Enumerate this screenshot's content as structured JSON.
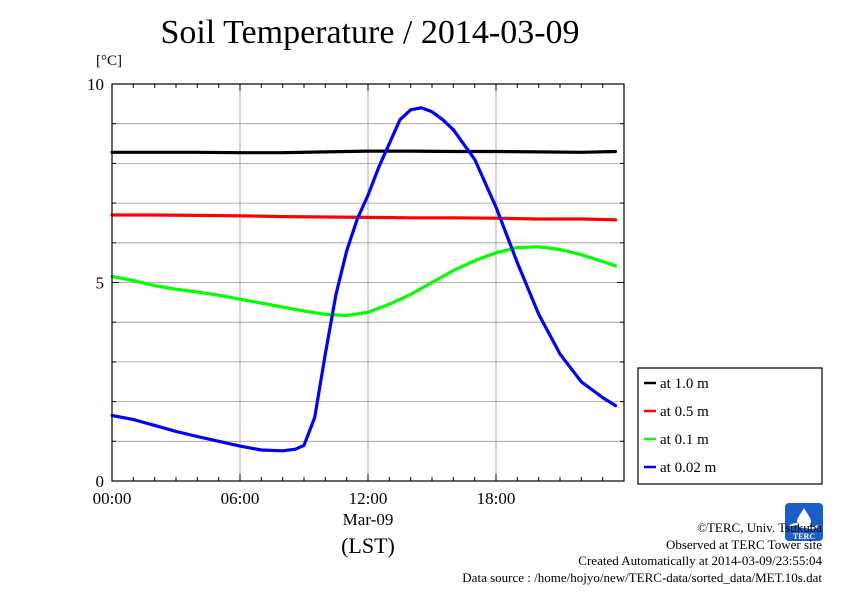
{
  "chart_data": {
    "type": "line",
    "title": "Soil Temperature / 2014-03-09",
    "ylabel": "[°C]",
    "xlabel": "(LST)",
    "date_label": "Mar-09",
    "ylim": [
      0,
      10
    ],
    "yticks": [
      "0",
      "5",
      "10"
    ],
    "xlim": [
      0,
      24
    ],
    "xticks": [
      "00:00",
      "06:00",
      "12:00",
      "18:00"
    ],
    "grid": true,
    "legend_position": "right",
    "series": [
      {
        "name": "at 1.0 m",
        "color": "#000000",
        "x": [
          0,
          2,
          4,
          6,
          8,
          10,
          12,
          14,
          16,
          18,
          20,
          22,
          23.6
        ],
        "y": [
          8.28,
          8.28,
          8.28,
          8.27,
          8.27,
          8.29,
          8.31,
          8.31,
          8.3,
          8.3,
          8.29,
          8.28,
          8.3
        ]
      },
      {
        "name": "at 0.5 m",
        "color": "#ff0000",
        "x": [
          0,
          2,
          4,
          6,
          8,
          10,
          12,
          14,
          16,
          18,
          20,
          22,
          23.6
        ],
        "y": [
          6.7,
          6.7,
          6.69,
          6.68,
          6.66,
          6.65,
          6.64,
          6.63,
          6.63,
          6.62,
          6.6,
          6.6,
          6.58
        ]
      },
      {
        "name": "at 0.1 m",
        "color": "#00ff00",
        "x": [
          0,
          1,
          2,
          3,
          4,
          5,
          6,
          7,
          8,
          9,
          10,
          11,
          12,
          13,
          14,
          15,
          16,
          17,
          18,
          19,
          20,
          21,
          22,
          23,
          23.6
        ],
        "y": [
          5.15,
          5.05,
          4.92,
          4.83,
          4.76,
          4.68,
          4.58,
          4.48,
          4.38,
          4.28,
          4.2,
          4.17,
          4.25,
          4.45,
          4.7,
          5.0,
          5.3,
          5.55,
          5.75,
          5.88,
          5.9,
          5.83,
          5.7,
          5.53,
          5.42
        ]
      },
      {
        "name": "at 0.02 m",
        "color": "#0000ff",
        "x": [
          0,
          1,
          2,
          3,
          4,
          5,
          6,
          7,
          8,
          8.6,
          9,
          9.5,
          10,
          10.5,
          11,
          11.5,
          12,
          12.5,
          13,
          13.5,
          14,
          14.5,
          15,
          15.5,
          16,
          17,
          18,
          19,
          20,
          21,
          22,
          23,
          23.6
        ],
        "y": [
          1.65,
          1.55,
          1.4,
          1.25,
          1.12,
          1.0,
          0.88,
          0.78,
          0.76,
          0.8,
          0.9,
          1.6,
          3.2,
          4.7,
          5.8,
          6.6,
          7.2,
          7.9,
          8.5,
          9.1,
          9.35,
          9.4,
          9.3,
          9.1,
          8.85,
          8.1,
          6.9,
          5.5,
          4.2,
          3.2,
          2.5,
          2.1,
          1.9
        ]
      }
    ]
  },
  "credits": {
    "copyright": "©TERC, Univ. Tsukuba",
    "observed": "Observed at TERC Tower site",
    "created": "Created Automatically at 2014-03-09/23:55:04",
    "source": "Data source : /home/hojyo/new/TERC-data/sorted_data/MET.10s.dat",
    "logo_text": "TERC"
  }
}
